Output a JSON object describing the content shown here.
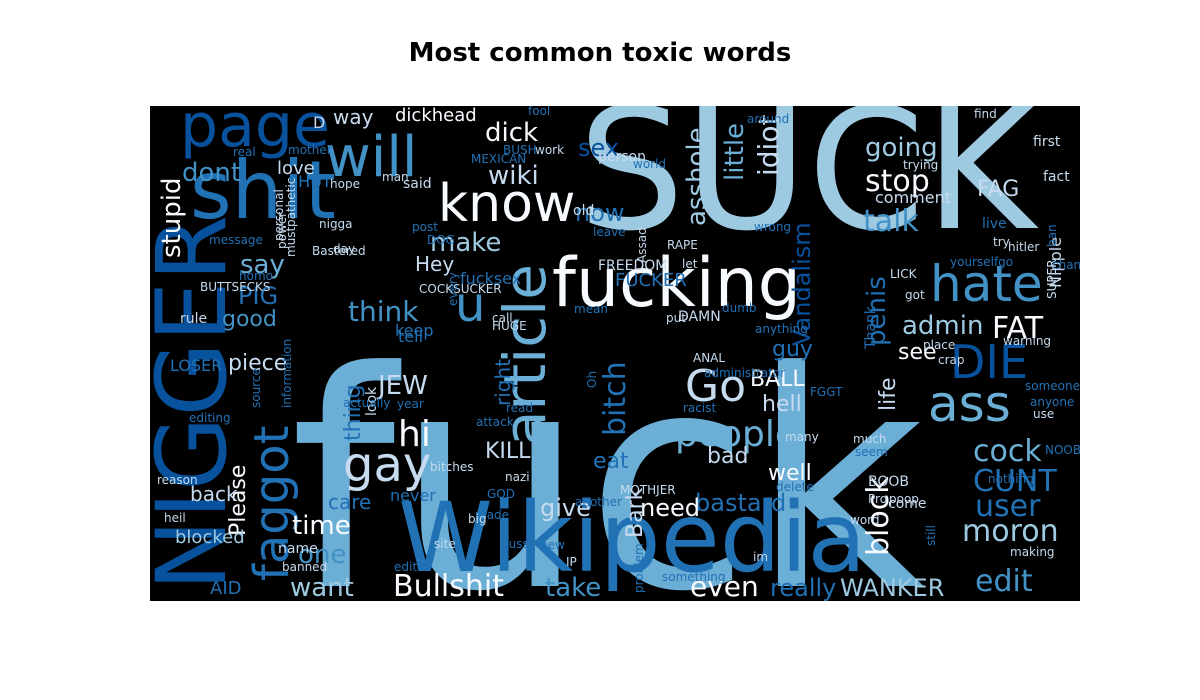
{
  "chart_data": {
    "type": "wordcloud",
    "title": "Most common toxic words",
    "background": "#000000",
    "colormap": [
      "#08306b",
      "#08519c",
      "#2171b5",
      "#4292c6",
      "#6baed6",
      "#9ecae1",
      "#c6dbef",
      "#f7fbff"
    ],
    "words": [
      {
        "text": "fuck",
        "color": "#6baed6"
      },
      {
        "text": "SUCK",
        "color": "#9ecae1"
      },
      {
        "text": "NIGGER",
        "color": "#08519c"
      },
      {
        "text": "Wikipedia",
        "color": "#2171b5"
      },
      {
        "text": "shit",
        "color": "#2171b5"
      },
      {
        "text": "fucking",
        "color": "#f7fbff"
      },
      {
        "text": "page",
        "color": "#08519c"
      },
      {
        "text": "will",
        "color": "#4292c6"
      },
      {
        "text": "know",
        "color": "#f7fbff"
      },
      {
        "text": "article",
        "color": "#6baed6"
      },
      {
        "text": "faggot",
        "color": "#2171b5"
      },
      {
        "text": "hate",
        "color": "#4292c6"
      },
      {
        "text": "ass",
        "color": "#6baed6"
      },
      {
        "text": "gay",
        "color": "#c6dbef"
      },
      {
        "text": "DIE",
        "color": "#08519c"
      },
      {
        "text": "Go",
        "color": "#c6dbef"
      },
      {
        "text": "people",
        "color": "#6baed6"
      },
      {
        "text": "block",
        "color": "#f7fbff"
      },
      {
        "text": "edit",
        "color": "#4292c6"
      },
      {
        "text": "moron",
        "color": "#9ecae1"
      },
      {
        "text": "user",
        "color": "#2171b5"
      },
      {
        "text": "CUNT",
        "color": "#2171b5"
      },
      {
        "text": "cock",
        "color": "#6baed6"
      },
      {
        "text": "bitch",
        "color": "#2171b5"
      },
      {
        "text": "stop",
        "color": "#f7fbff"
      },
      {
        "text": "going",
        "color": "#9ecae1"
      },
      {
        "text": "talk",
        "color": "#4292c6"
      },
      {
        "text": "FAT",
        "color": "#f7fbff"
      },
      {
        "text": "admin",
        "color": "#9ecae1"
      },
      {
        "text": "penis",
        "color": "#2171b5"
      },
      {
        "text": "Vandalism",
        "color": "#08519c"
      },
      {
        "text": "idiot",
        "color": "#c6dbef"
      },
      {
        "text": "little",
        "color": "#6baed6"
      },
      {
        "text": "asshole",
        "color": "#9ecae1"
      },
      {
        "text": "wiki",
        "color": "#c6dbef"
      },
      {
        "text": "dick",
        "color": "#f7fbff"
      },
      {
        "text": "u",
        "color": "#4292c6"
      },
      {
        "text": "JEW",
        "color": "#c6dbef"
      },
      {
        "text": "hi",
        "color": "#f7fbff"
      },
      {
        "text": "think",
        "color": "#4292c6"
      },
      {
        "text": "make",
        "color": "#9ecae1"
      },
      {
        "text": "stupid",
        "color": "#f7fbff"
      },
      {
        "text": "dont",
        "color": "#4292c6"
      },
      {
        "text": "PIG",
        "color": "#2171b5"
      },
      {
        "text": "say",
        "color": "#6baed6"
      },
      {
        "text": "good",
        "color": "#4292c6"
      },
      {
        "text": "time",
        "color": "#f7fbff"
      },
      {
        "text": "one",
        "color": "#4292c6"
      },
      {
        "text": "want",
        "color": "#9ecae1"
      },
      {
        "text": "Bullshit",
        "color": "#f7fbff"
      },
      {
        "text": "take",
        "color": "#4292c6"
      },
      {
        "text": "even",
        "color": "#f7fbff"
      },
      {
        "text": "really",
        "color": "#2171b5"
      },
      {
        "text": "WANKER",
        "color": "#9ecae1"
      },
      {
        "text": "bastard",
        "color": "#2171b5"
      },
      {
        "text": "need",
        "color": "#f7fbff"
      },
      {
        "text": "give",
        "color": "#c6dbef"
      },
      {
        "text": "Bark",
        "color": "#c6dbef"
      },
      {
        "text": "KILL",
        "color": "#c6dbef"
      },
      {
        "text": "eat",
        "color": "#2171b5"
      },
      {
        "text": "bad",
        "color": "#c6dbef"
      },
      {
        "text": "well",
        "color": "#f7fbff"
      },
      {
        "text": "hell",
        "color": "#c6dbef"
      },
      {
        "text": "BALL",
        "color": "#f7fbff"
      },
      {
        "text": "guy",
        "color": "#2171b5"
      },
      {
        "text": "life",
        "color": "#c6dbef"
      },
      {
        "text": "see",
        "color": "#f7fbff"
      },
      {
        "text": "Please",
        "color": "#f7fbff"
      },
      {
        "text": "thing",
        "color": "#2171b5"
      },
      {
        "text": "piece",
        "color": "#c6dbef"
      },
      {
        "text": "care",
        "color": "#2171b5"
      },
      {
        "text": "back",
        "color": "#c6dbef"
      },
      {
        "text": "blocked",
        "color": "#9ecae1"
      },
      {
        "text": "right",
        "color": "#2171b5"
      },
      {
        "text": "sex",
        "color": "#08519c"
      },
      {
        "text": "now",
        "color": "#2171b5"
      },
      {
        "text": "Hey",
        "color": "#c6dbef"
      },
      {
        "text": "FAG",
        "color": "#c6dbef"
      },
      {
        "text": "love",
        "color": "#c6dbef"
      },
      {
        "text": "way",
        "color": "#c6dbef"
      },
      {
        "text": "dickhead",
        "color": "#f7fbff"
      },
      {
        "text": "FUCKER",
        "color": "#2171b5"
      },
      {
        "text": "Nipple",
        "color": "#c6dbef"
      },
      {
        "text": "comment",
        "color": "#c6dbef"
      },
      {
        "text": "FREEDOM",
        "color": "#c6dbef"
      },
      {
        "text": "fucksex",
        "color": "#2171b5"
      },
      {
        "text": "DAMN",
        "color": "#c6dbef"
      },
      {
        "text": "tell",
        "color": "#2171b5"
      },
      {
        "text": "name",
        "color": "#c6dbef"
      },
      {
        "text": "rule",
        "color": "#c6dbef"
      },
      {
        "text": "never",
        "color": "#2171b5"
      },
      {
        "text": "AID",
        "color": "#2171b5"
      },
      {
        "text": "LOSER",
        "color": "#2171b5"
      },
      {
        "text": "keep",
        "color": "#2171b5"
      },
      {
        "text": "look",
        "color": "#c6dbef"
      },
      {
        "text": "Thank",
        "color": "#2171b5"
      },
      {
        "text": "person",
        "color": "#c6dbef"
      },
      {
        "text": "SHUT",
        "color": "#2171b5"
      },
      {
        "text": "D",
        "color": "#c6dbef"
      },
      {
        "text": "old",
        "color": "#c6dbef"
      },
      {
        "text": "said",
        "color": "#c6dbef"
      },
      {
        "text": "hope",
        "color": "#c6dbef"
      },
      {
        "text": "man",
        "color": "#c6dbef"
      },
      {
        "text": "first",
        "color": "#c6dbef"
      },
      {
        "text": "fact",
        "color": "#c6dbef"
      },
      {
        "text": "live",
        "color": "#2171b5"
      },
      {
        "text": "try",
        "color": "#c6dbef"
      },
      {
        "text": "hitler",
        "color": "#c6dbef"
      },
      {
        "text": "change",
        "color": "#2171b5"
      },
      {
        "text": "LICK",
        "color": "#c6dbef"
      },
      {
        "text": "got",
        "color": "#c6dbef"
      },
      {
        "text": "place",
        "color": "#c6dbef"
      },
      {
        "text": "crap",
        "color": "#c6dbef"
      },
      {
        "text": "much",
        "color": "#c6dbef"
      },
      {
        "text": "seem",
        "color": "#2171b5"
      },
      {
        "text": "poop",
        "color": "#c6dbef"
      },
      {
        "text": "nothing",
        "color": "#2171b5"
      },
      {
        "text": "come",
        "color": "#c6dbef"
      },
      {
        "text": "BOOB",
        "color": "#c6dbef"
      },
      {
        "text": "FGGT",
        "color": "#2171b5"
      },
      {
        "text": "word",
        "color": "#c6dbef"
      },
      {
        "text": "Pro",
        "color": "#c6dbef"
      },
      {
        "text": "IP",
        "color": "#c6dbef"
      },
      {
        "text": "pussy",
        "color": "#2171b5"
      },
      {
        "text": "site",
        "color": "#c6dbef"
      },
      {
        "text": "editor",
        "color": "#2171b5"
      },
      {
        "text": "banned",
        "color": "#c6dbef"
      },
      {
        "text": "made",
        "color": "#2171b5"
      },
      {
        "text": "new",
        "color": "#2171b5"
      },
      {
        "text": "big",
        "color": "#c6dbef"
      },
      {
        "text": "MOTHJER",
        "color": "#c6dbef"
      },
      {
        "text": "nazi",
        "color": "#c6dbef"
      },
      {
        "text": "ANAL",
        "color": "#c6dbef"
      },
      {
        "text": "administrator",
        "color": "#2171b5"
      },
      {
        "text": "Oh",
        "color": "#2171b5"
      },
      {
        "text": "racist",
        "color": "#2171b5"
      },
      {
        "text": "bitches",
        "color": "#c6dbef"
      },
      {
        "text": "GOD",
        "color": "#2171b5"
      },
      {
        "text": "year",
        "color": "#2171b5"
      },
      {
        "text": "actually",
        "color": "#2171b5"
      },
      {
        "text": "source",
        "color": "#2171b5"
      },
      {
        "text": "information",
        "color": "#2171b5"
      },
      {
        "text": "editing",
        "color": "#2171b5"
      },
      {
        "text": "reason",
        "color": "#c6dbef"
      },
      {
        "text": "heil",
        "color": "#c6dbef"
      },
      {
        "text": "homo",
        "color": "#2171b5"
      },
      {
        "text": "BUTTSECKS",
        "color": "#c6dbef"
      },
      {
        "text": "COCKSUCKER",
        "color": "#c6dbef"
      },
      {
        "text": "Bastered",
        "color": "#c6dbef"
      },
      {
        "text": "post",
        "color": "#2171b5"
      },
      {
        "text": "DOG",
        "color": "#2171b5"
      },
      {
        "text": "nigga",
        "color": "#c6dbef"
      },
      {
        "text": "day",
        "color": "#c6dbef"
      },
      {
        "text": "must",
        "color": "#c6dbef"
      },
      {
        "text": "power",
        "color": "#c6dbef"
      },
      {
        "text": "pathetic",
        "color": "#c6dbef"
      },
      {
        "text": "personal",
        "color": "#c6dbef"
      },
      {
        "text": "message",
        "color": "#2171b5"
      },
      {
        "text": "real",
        "color": "#2171b5"
      },
      {
        "text": "mother",
        "color": "#2171b5"
      },
      {
        "text": "fool",
        "color": "#2171b5"
      },
      {
        "text": "MEXICAN",
        "color": "#2171b5"
      },
      {
        "text": "BUSH",
        "color": "#2171b5"
      },
      {
        "text": "work",
        "color": "#c6dbef"
      },
      {
        "text": "world",
        "color": "#2171b5"
      },
      {
        "text": "around",
        "color": "#2171b5"
      },
      {
        "text": "find",
        "color": "#c6dbef"
      },
      {
        "text": "trying",
        "color": "#c6dbef"
      },
      {
        "text": "wrong",
        "color": "#2171b5"
      },
      {
        "text": "leave",
        "color": "#2171b5"
      },
      {
        "text": "RAPE",
        "color": "#c6dbef"
      },
      {
        "text": "Assad",
        "color": "#c6dbef"
      },
      {
        "text": "let",
        "color": "#c6dbef"
      },
      {
        "text": "yourselfgo",
        "color": "#2171b5"
      },
      {
        "text": "ban",
        "color": "#2171b5"
      },
      {
        "text": "SUPER",
        "color": "#c6dbef"
      },
      {
        "text": "every",
        "color": "#2171b5"
      },
      {
        "text": "mean",
        "color": "#2171b5"
      },
      {
        "text": "HUGE",
        "color": "#c6dbef"
      },
      {
        "text": "call",
        "color": "#c6dbef"
      },
      {
        "text": "put",
        "color": "#c6dbef"
      },
      {
        "text": "dumb",
        "color": "#2171b5"
      },
      {
        "text": "anything",
        "color": "#2171b5"
      },
      {
        "text": "warning",
        "color": "#c6dbef"
      },
      {
        "text": "anyone",
        "color": "#2171b5"
      },
      {
        "text": "someone",
        "color": "#2171b5"
      },
      {
        "text": "use",
        "color": "#c6dbef"
      },
      {
        "text": "NOOB",
        "color": "#2171b5"
      },
      {
        "text": "many",
        "color": "#c6dbef"
      },
      {
        "text": "delete",
        "color": "#2171b5"
      },
      {
        "text": "attack",
        "color": "#2171b5"
      },
      {
        "text": "read",
        "color": "#2171b5"
      },
      {
        "text": "another",
        "color": "#2171b5"
      },
      {
        "text": "im",
        "color": "#c6dbef"
      },
      {
        "text": "still",
        "color": "#2171b5"
      },
      {
        "text": "making",
        "color": "#c6dbef"
      },
      {
        "text": "problem",
        "color": "#2171b5"
      },
      {
        "text": "something",
        "color": "#2171b5"
      },
      {
        "text": "better",
        "color": "#2171b5"
      },
      {
        "text": "F",
        "color": "#c6dbef"
      }
    ]
  }
}
